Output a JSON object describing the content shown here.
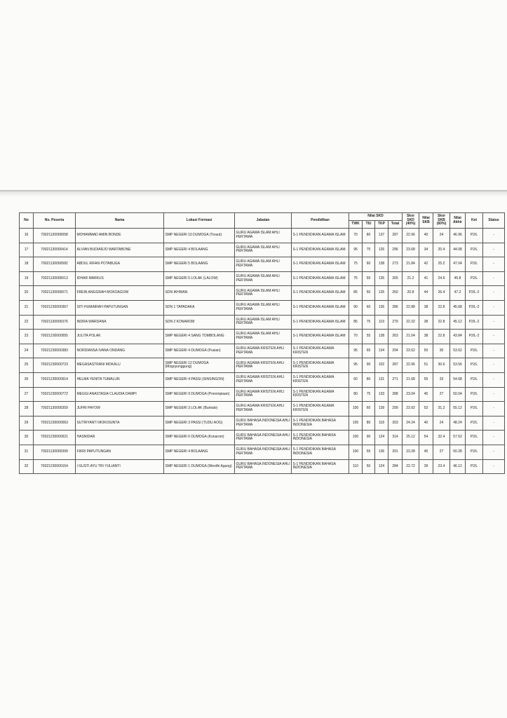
{
  "headers": {
    "no": "No",
    "no_peserta": "No. Peserta",
    "nama": "Nama",
    "lokasi": "Lokasi Formasi",
    "jabatan": "Jabatan",
    "pendidikan": "Pendidikan",
    "nilai_skd": "Nilai SKD",
    "twk": "TWK",
    "tiu": "TIU",
    "tkp": "TKP",
    "total": "Total",
    "skor_skd": "Skor SKD (40%)",
    "nilai_skb": "Nilai SKB",
    "skor_skb": "Skor SKB (60%)",
    "nilai_akhir": "Nilai Akhir",
    "ket": "Ket",
    "status": "Status"
  },
  "rows": [
    {
      "no": "16",
      "id": "70021130000058",
      "nama": "MOHAMMAD AMIN BONDE",
      "lokasi": "SMP NEGERI 10 DUMOGA (Toraut)",
      "jabatan": "GURU AGAMA ISLAM AHLI PERTAMA",
      "pendidikan": "S-1 PENDIDIKAN AGAMA ISLAM",
      "twk": "70",
      "tiu": "80",
      "tkp": "137",
      "total": "287",
      "skd": "22.96",
      "skb": "40",
      "skorskb": "24",
      "akhir": "46.96",
      "ket": "P2/L",
      "status": "-"
    },
    {
      "no": "17",
      "id": "70021130000414",
      "nama": "ALVIAN BUDIARJO WARTABONE",
      "lokasi": "SMP NEGERI 4 BOLAANG",
      "jabatan": "GURU AGAMA ISLAM AHLI PERTAMA",
      "pendidikan": "S-1 PENDIDIKAN AGAMA ISLAM",
      "twk": "95",
      "tiu": "75",
      "tkp": "126",
      "total": "296",
      "skd": "23.68",
      "skb": "34",
      "skorskb": "20.4",
      "akhir": "44.08",
      "ket": "P2/L",
      "status": "-"
    },
    {
      "no": "18",
      "id": "70021130000582",
      "nama": "ABDUL RIFAN POTABUGA",
      "lokasi": "SMP NEGERI 5 BOLAANG",
      "jabatan": "GURU AGAMA ISLAM AHLI PERTAMA",
      "pendidikan": "S-1 PENDIDIKAN AGAMA ISLAM",
      "twk": "75",
      "tiu": "60",
      "tkp": "138",
      "total": "273",
      "skd": "21.84",
      "skb": "42",
      "skorskb": "25.2",
      "akhir": "47.04",
      "ket": "P2/L",
      "status": "-"
    },
    {
      "no": "19",
      "id": "70021130000013",
      "nama": "IDHAR MARKUS",
      "lokasi": "SMP NEGERI 5 LOLAK (LALOW)",
      "jabatan": "GURU AGAMA ISLAM AHLI PERTAMA",
      "pendidikan": "S-1 PENDIDIKAN AGAMA ISLAM",
      "twk": "75",
      "tiu": "55",
      "tkp": "135",
      "total": "265",
      "skd": "21.2",
      "skb": "41",
      "skorskb": "24.6",
      "akhir": "45.8",
      "ket": "P2/L",
      "status": "-"
    },
    {
      "no": "20",
      "id": "70021130000071",
      "nama": "FREIN ANGGRAH MOKOAGOW",
      "lokasi": "SDN IKHWAN",
      "jabatan": "GURU AGAMA ISLAM AHLI PERTAMA",
      "pendidikan": "S-1 PENDIDIKAN AGAMA ISLAM",
      "twk": "85",
      "tiu": "50",
      "tkp": "125",
      "total": "260",
      "skd": "20.8",
      "skb": "44",
      "skorskb": "26.4",
      "akhir": "47.2",
      "ket": "P2/L-2",
      "status": "-"
    },
    {
      "no": "21",
      "id": "70021230000367",
      "nama": "SITI HUMAIRAH PAPUTUNGAN",
      "lokasi": "SDN 1 TAPADAKA",
      "jabatan": "GURU AGAMA ISLAM AHLI PERTAMA",
      "pendidikan": "S-1 PENDIDIKAN AGAMA ISLAM",
      "twk": "90",
      "tiu": "60",
      "tkp": "136",
      "total": "286",
      "skd": "22.88",
      "skb": "38",
      "skorskb": "22.8",
      "akhir": "45.68",
      "ket": "P2/L-2",
      "status": "-"
    },
    {
      "no": "22",
      "id": "70021130000376",
      "nama": "INDRA WARDANA",
      "lokasi": "SDN 2 KONAROM",
      "jabatan": "GURU AGAMA ISLAM AHLI PERTAMA",
      "pendidikan": "S-1 PENDIDIKAN AGAMA ISLAM",
      "twk": "85",
      "tiu": "75",
      "tkp": "119",
      "total": "279",
      "skd": "22.32",
      "skb": "38",
      "skorskb": "22.8",
      "akhir": "45.12",
      "ket": "P2/L-2",
      "status": "-"
    },
    {
      "no": "23",
      "id": "70021230000555",
      "nama": "JULITA POLAK",
      "lokasi": "SMP NEGERI 4 SANG TOMBOLANG",
      "jabatan": "GURU AGAMA ISLAM AHLI PERTAMA",
      "pendidikan": "S-1 PENDIDIKAN AGAMA ISLAM",
      "twk": "70",
      "tiu": "55",
      "tkp": "138",
      "total": "263",
      "skd": "21.04",
      "skb": "38",
      "skorskb": "22.8",
      "akhir": "43.84",
      "ket": "P2/L-2",
      "status": "-"
    },
    {
      "no": "24",
      "id": "70021230000383",
      "nama": "NORDIANSA IVANA ONDANG",
      "lokasi": "SMP NEGERI 4 DUMOGA (Pusian)",
      "jabatan": "GURU AGAMA KRISTEN AHLI PERTAMA",
      "pendidikan": "S-1 PENDIDIKAN AGAMA KRISTEN",
      "twk": "95",
      "tiu": "65",
      "tkp": "134",
      "total": "294",
      "skd": "23.52",
      "skb": "50",
      "skorskb": "30",
      "akhir": "53.52",
      "ket": "P2/L",
      "status": "-"
    },
    {
      "no": "25",
      "id": "70021230000723",
      "nama": "MEGASASTRANI MOKALU",
      "lokasi": "SMP NEGERI 12 DUMOGA (Mogoyunggung)",
      "jabatan": "GURU AGAMA KRISTEN AHLI PERTAMA",
      "pendidikan": "S-1 PENDIDIKAN AGAMA KRISTEN",
      "twk": "95",
      "tiu": "90",
      "tkp": "102",
      "total": "287",
      "skd": "22.96",
      "skb": "51",
      "skorskb": "30.6",
      "akhir": "53.56",
      "ket": "P2/L",
      "status": "-"
    },
    {
      "no": "26",
      "id": "70021230000914",
      "nama": "HELMA YENITA TUMALUN",
      "lokasi": "SMP NEGERI 4 PASSI (SINSINGON)",
      "jabatan": "GURU AGAMA KRISTEN AHLI PERTAMA",
      "pendidikan": "S-1 PENDIDIKAN AGAMA KRISTEN",
      "twk": "60",
      "tiu": "80",
      "tkp": "131",
      "total": "271",
      "skd": "21.68",
      "skb": "55",
      "skorskb": "33",
      "akhir": "54.68",
      "ket": "P2/L",
      "status": "-"
    },
    {
      "no": "27",
      "id": "70021230000772",
      "nama": "MEGGI ANASTASIA CLAUDIA DAMPI",
      "lokasi": "SMP NEGERI 9 DUMOGA (Ponompiaan)",
      "jabatan": "GURU AGAMA KRISTEN AHLI PERTAMA",
      "pendidikan": "S-1 PENDIDIKAN AGAMA KRISTEN",
      "twk": "80",
      "tiu": "75",
      "tkp": "133",
      "total": "288",
      "skd": "23.04",
      "skb": "45",
      "skorskb": "27",
      "akhir": "50.04",
      "ket": "P2/L",
      "status": "-"
    },
    {
      "no": "28",
      "id": "70021130000359",
      "nama": "JUFRI PAYOW",
      "lokasi": "SMP NEGERI 3 LOLAK (Buntalo)",
      "jabatan": "GURU AGAMA KRISTEN AHLI PERTAMA",
      "pendidikan": "S-1 PENDIDIKAN AGAMA KRISTEN",
      "twk": "100",
      "tiu": "60",
      "tkp": "139",
      "total": "299",
      "skd": "23.92",
      "skb": "52",
      "skorskb": "31.2",
      "akhir": "55.12",
      "ket": "P2/L",
      "status": "-"
    },
    {
      "no": "29",
      "id": "70021230000063",
      "nama": "SUTRIYANTI MOKOGINTA",
      "lokasi": "SMP NEGERI 3 PASSI (TUDU AOG)",
      "jabatan": "GURU BAHASA INDONESIA AHLI PERTAMA",
      "pendidikan": "S-1 PENDIDIKAN BAHASA INDONESIA",
      "twk": "105",
      "tiu": "80",
      "tkp": "118",
      "total": "303",
      "skd": "24.24",
      "skb": "40",
      "skorskb": "24",
      "akhir": "48.24",
      "ket": "P2/L",
      "status": "-"
    },
    {
      "no": "30",
      "id": "70021230000521",
      "nama": "HASNIDAR",
      "lokasi": "SMP NEGERI 6 DUMOGA (Konarom)",
      "jabatan": "GURU BAHASA INDONESIA AHLI PERTAMA",
      "pendidikan": "S-1 PENDIDIKAN BAHASA INDONESIA",
      "twk": "100",
      "tiu": "90",
      "tkp": "124",
      "total": "314",
      "skd": "25.12",
      "skb": "54",
      "skorskb": "32.4",
      "akhir": "57.52",
      "ket": "P2/L",
      "status": "-"
    },
    {
      "no": "31",
      "id": "70021130000399",
      "nama": "FIKRI PAPUTUNGAN",
      "lokasi": "SMP NEGERI 4 BOLAANG",
      "jabatan": "GURU BAHASA INDONESIA AHLI PERTAMA",
      "pendidikan": "S-1 PENDIDIKAN BAHASA INDONESIA",
      "twk": "100",
      "tiu": "55",
      "tkp": "136",
      "total": "291",
      "skd": "23.28",
      "skb": "45",
      "skorskb": "27",
      "akhir": "50.28",
      "ket": "P2/L",
      "status": "-"
    },
    {
      "no": "32",
      "id": "70021230000154",
      "nama": "I GUSTI AYU TRI YULIANTI",
      "lokasi": "SMP NEGERI 1 DUMOGA (Werdhi Agung)",
      "jabatan": "GURU BAHASA INDONESIA AHLI PERTAMA",
      "pendidikan": "S-1 PENDIDIKAN BAHASA INDONESIA",
      "twk": "110",
      "tiu": "50",
      "tkp": "124",
      "total": "284",
      "skd": "22.72",
      "skb": "39",
      "skorskb": "23.4",
      "akhir": "46.12",
      "ket": "P2/L",
      "status": "-"
    }
  ]
}
